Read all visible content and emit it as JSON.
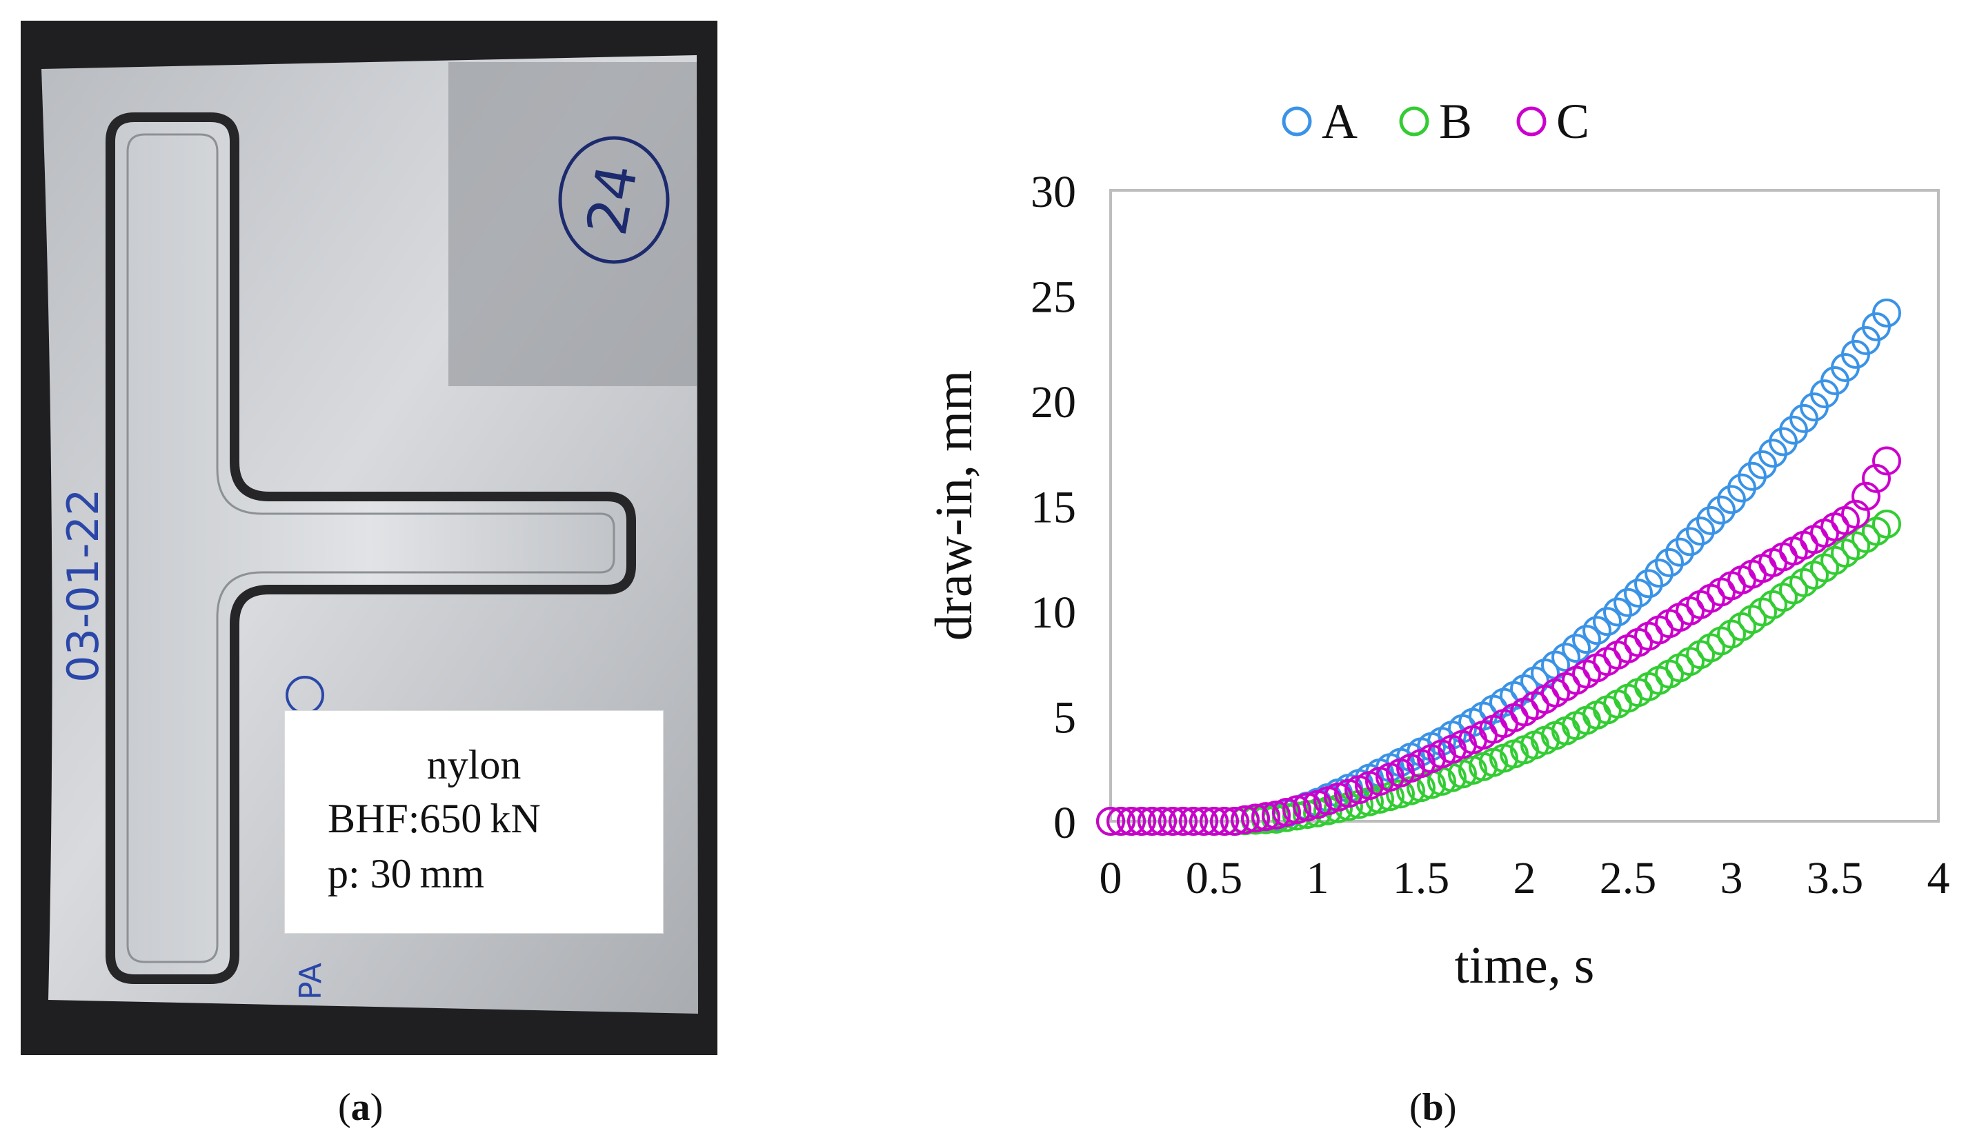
{
  "panel_a": {
    "label": {
      "material": "nylon",
      "bhf": "BHF:650 kN",
      "p": "p: 30 mm"
    },
    "handwriting": {
      "circled_number": "24",
      "date": "03-01-22",
      "note": "PA"
    },
    "caption": {
      "open": "(",
      "letter": "a",
      "close": ")"
    }
  },
  "panel_b": {
    "caption": {
      "open": "(",
      "letter": "b",
      "close": ")"
    }
  },
  "chart_data": {
    "type": "scatter",
    "title": "",
    "xlabel": "time, s",
    "ylabel": "draw-in, mm",
    "xlim": [
      0,
      4
    ],
    "ylim": [
      0,
      30
    ],
    "xticks": [
      "0",
      "0.5",
      "1",
      "1.5",
      "2",
      "2.5",
      "3",
      "3.5",
      "4"
    ],
    "yticks": [
      "0",
      "5",
      "10",
      "15",
      "20",
      "25",
      "30"
    ],
    "grid": false,
    "legend_position": "top",
    "marker": "open-circle",
    "series": [
      {
        "name": "A",
        "color": "#3a93e6",
        "x": [
          0,
          0.2,
          0.4,
          0.6,
          0.8,
          1.0,
          1.2,
          1.4,
          1.6,
          1.8,
          2.0,
          2.2,
          2.4,
          2.6,
          2.8,
          3.0,
          3.2,
          3.4,
          3.6,
          3.76
        ],
        "y": [
          0,
          0,
          0,
          0,
          0.2,
          0.9,
          1.8,
          2.8,
          3.8,
          5.0,
          6.3,
          7.8,
          9.5,
          11.3,
          13.3,
          15.3,
          17.5,
          19.7,
          22.2,
          24.3
        ]
      },
      {
        "name": "B",
        "color": "#33cc33",
        "x": [
          0,
          0.2,
          0.4,
          0.6,
          0.8,
          1.0,
          1.2,
          1.4,
          1.6,
          1.8,
          2.0,
          2.2,
          2.4,
          2.6,
          2.8,
          3.0,
          3.2,
          3.4,
          3.6,
          3.76
        ],
        "y": [
          0,
          0,
          0,
          0,
          0.1,
          0.4,
          0.8,
          1.3,
          1.9,
          2.6,
          3.4,
          4.3,
          5.3,
          6.4,
          7.6,
          8.9,
          10.3,
          11.7,
          13.1,
          14.2
        ]
      },
      {
        "name": "C",
        "color": "#cc00cc",
        "x": [
          0,
          0.2,
          0.4,
          0.6,
          0.8,
          1.0,
          1.2,
          1.4,
          1.6,
          1.8,
          2.0,
          2.2,
          2.4,
          2.6,
          2.8,
          3.0,
          3.2,
          3.4,
          3.6,
          3.7,
          3.76
        ],
        "y": [
          0,
          0,
          0,
          0,
          0.3,
          0.8,
          1.5,
          2.3,
          3.2,
          4.1,
          5.2,
          6.4,
          7.6,
          8.8,
          10.0,
          11.2,
          12.3,
          13.4,
          14.6,
          16.3,
          17.3
        ]
      }
    ]
  }
}
